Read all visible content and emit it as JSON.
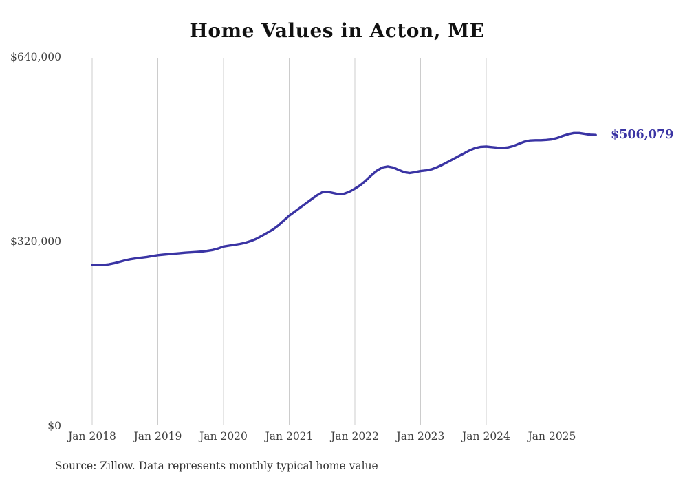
{
  "page": {
    "title": "Home Values in Acton, ME",
    "source_note": "Source: Zillow. Data represents monthly typical home value"
  },
  "colors": {
    "line": "#3a34a4",
    "gridline": "#cccccc",
    "tick_label": "#3f3f3f",
    "title": "#111111",
    "source": "#333333"
  },
  "chart_data": {
    "type": "line",
    "title": "Home Values in Acton, ME",
    "xlabel": "",
    "ylabel": "",
    "ylim": [
      0,
      640000
    ],
    "grid": "vertical-yearly-only",
    "x_ticks": [
      "Jan 2018",
      "Jan 2019",
      "Jan 2020",
      "Jan 2021",
      "Jan 2022",
      "Jan 2023",
      "Jan 2024",
      "Jan 2025"
    ],
    "y_ticks": [
      {
        "value": 0,
        "label": "$0"
      },
      {
        "value": 320000,
        "label": "$320,000"
      },
      {
        "value": 640000,
        "label": "$640,000"
      }
    ],
    "end_label": "$506,079",
    "final_value": 506079,
    "series": [
      {
        "name": "Typical home value",
        "start_month": "Jan 2018",
        "end_month": "Sep 2025",
        "frequency": "monthly",
        "values": [
          281000,
          280600,
          280500,
          281500,
          283500,
          286000,
          288500,
          290500,
          292000,
          293200,
          294500,
          296000,
          297500,
          298500,
          299300,
          300200,
          301000,
          301800,
          302500,
          303000,
          303800,
          305000,
          306500,
          309000,
          312500,
          314000,
          315500,
          317000,
          319000,
          322000,
          326000,
          331000,
          336500,
          342000,
          349000,
          357500,
          366000,
          373000,
          380000,
          387000,
          394000,
          401000,
          406500,
          407500,
          405500,
          403500,
          404000,
          407500,
          413000,
          419000,
          427000,
          436000,
          444000,
          449500,
          451500,
          449500,
          445500,
          441500,
          440000,
          441500,
          443500,
          444500,
          446500,
          450000,
          454500,
          459500,
          464500,
          469500,
          474500,
          479500,
          483500,
          485500,
          486000,
          485000,
          484000,
          483500,
          484500,
          487000,
          491000,
          494500,
          496500,
          497000,
          497000,
          497500,
          498500,
          501000,
          504500,
          507500,
          509500,
          509500,
          508000,
          506500,
          506079
        ]
      }
    ]
  }
}
